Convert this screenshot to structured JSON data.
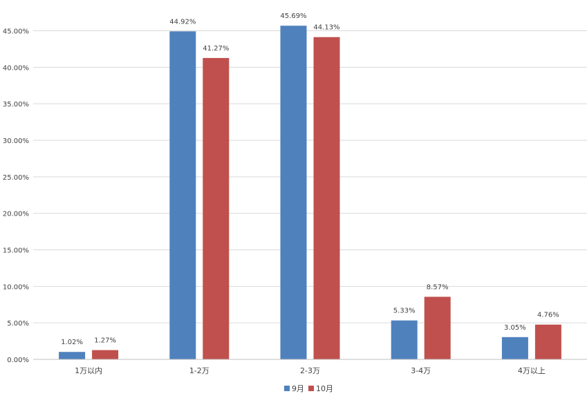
{
  "chart_data": {
    "type": "bar",
    "categories": [
      "1万以内",
      "1-2万",
      "2-3万",
      "3-4万",
      "4万以上"
    ],
    "series": [
      {
        "name": "9月",
        "values": [
          1.02,
          44.92,
          45.69,
          5.33,
          3.05
        ],
        "labels": [
          "1.02%",
          "44.92%",
          "45.69%",
          "5.33%",
          "3.05%"
        ],
        "color": "#4f81bd"
      },
      {
        "name": "10月",
        "values": [
          1.27,
          41.27,
          44.13,
          8.57,
          4.76
        ],
        "labels": [
          "1.27%",
          "41.27%",
          "44.13%",
          "8.57%",
          "4.76%"
        ],
        "color": "#c0504d"
      }
    ],
    "yticks": [
      "0.00%",
      "5.00%",
      "10.00%",
      "15.00%",
      "20.00%",
      "25.00%",
      "30.00%",
      "35.00%",
      "40.00%",
      "45.00%"
    ],
    "ylim": [
      0,
      48
    ],
    "ystep": 5,
    "title": "",
    "xlabel": "",
    "ylabel": "",
    "grid": true,
    "legend_position": "bottom-center",
    "gridline_color": "#d9d9d9",
    "axis_color": "#bfbfbf"
  }
}
